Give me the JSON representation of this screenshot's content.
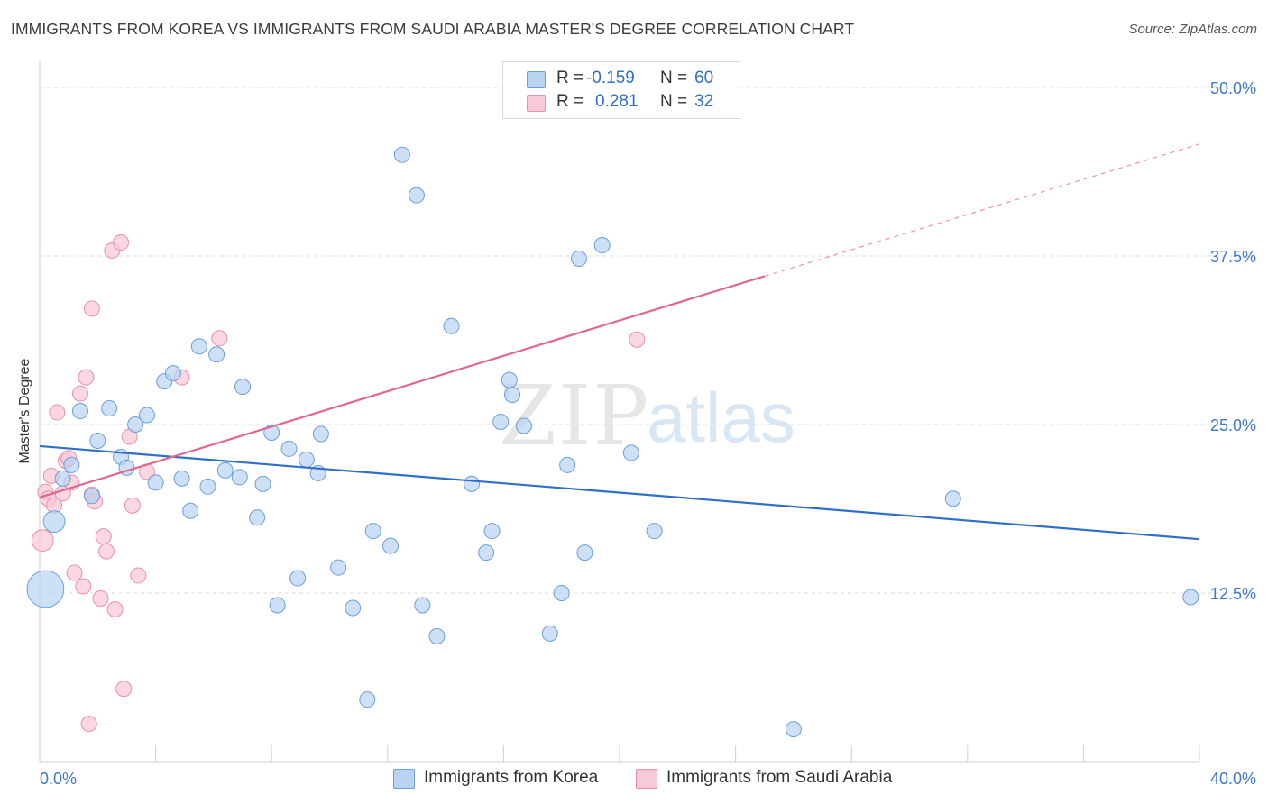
{
  "header": {
    "title": "IMMIGRANTS FROM KOREA VS IMMIGRANTS FROM SAUDI ARABIA MASTER'S DEGREE CORRELATION CHART",
    "source": "Source: ZipAtlas.com"
  },
  "watermark": {
    "zip": "ZIP",
    "atlas": "atlas"
  },
  "legend": {
    "korea": {
      "r_label": "R =",
      "r_value": "-0.159",
      "n_label": "N =",
      "n_value": "60"
    },
    "saudi": {
      "r_label": "R =",
      "r_value": "0.281",
      "n_label": "N =",
      "n_value": "32"
    }
  },
  "bottom_legend": {
    "korea": "Immigrants from Korea",
    "saudi": "Immigrants from Saudi Arabia"
  },
  "colors": {
    "korea_fill": "#b9d3f2",
    "korea_stroke": "#6b9fd8",
    "korea_line": "#2f6fc9",
    "saudi_fill": "#f8c9d7",
    "saudi_stroke": "#e891ac",
    "saudi_line": "#e0678f",
    "axis_text": "#3f78c8",
    "grid": "#dddddd"
  },
  "chart_data": {
    "type": "scatter",
    "title": "IMMIGRANTS FROM KOREA VS IMMIGRANTS FROM SAUDI ARABIA MASTER'S DEGREE CORRELATION CHART",
    "xlabel": "",
    "ylabel": "Master's Degree",
    "xlim": [
      0,
      40
    ],
    "ylim": [
      0,
      50
    ],
    "x_tick_labels": [
      "0.0%",
      "40.0%"
    ],
    "y_ticks": [
      12.5,
      25.0,
      37.5,
      50.0
    ],
    "y_tick_labels": [
      "12.5%",
      "25.0%",
      "37.5%",
      "50.0%"
    ],
    "grid": true,
    "series": [
      {
        "name": "Immigrants from Korea",
        "color": "korea",
        "points": [
          [
            0.2,
            12.8,
            2.4
          ],
          [
            0.5,
            17.8,
            1.4
          ],
          [
            0.8,
            21.0,
            1
          ],
          [
            1.1,
            22.0,
            1
          ],
          [
            1.4,
            26.0,
            1
          ],
          [
            1.8,
            19.7,
            1
          ],
          [
            2.0,
            23.8,
            1
          ],
          [
            2.4,
            26.2,
            1
          ],
          [
            2.8,
            22.6,
            1
          ],
          [
            3.0,
            21.8,
            1
          ],
          [
            3.3,
            25.0,
            1
          ],
          [
            3.7,
            25.7,
            1
          ],
          [
            4.0,
            20.7,
            1
          ],
          [
            4.3,
            28.2,
            1
          ],
          [
            4.6,
            28.8,
            1
          ],
          [
            4.9,
            21.0,
            1
          ],
          [
            5.2,
            18.6,
            1
          ],
          [
            5.5,
            30.8,
            1
          ],
          [
            5.8,
            20.4,
            1
          ],
          [
            6.1,
            30.2,
            1
          ],
          [
            6.4,
            21.6,
            1
          ],
          [
            6.9,
            21.1,
            1
          ],
          [
            7.0,
            27.8,
            1
          ],
          [
            7.5,
            18.1,
            1
          ],
          [
            7.7,
            20.6,
            1
          ],
          [
            8.0,
            24.4,
            1
          ],
          [
            8.2,
            11.6,
            1
          ],
          [
            8.6,
            23.2,
            1
          ],
          [
            8.9,
            13.6,
            1
          ],
          [
            9.2,
            22.4,
            1
          ],
          [
            9.6,
            21.4,
            1
          ],
          [
            9.7,
            24.3,
            1
          ],
          [
            10.3,
            14.4,
            1
          ],
          [
            10.8,
            11.4,
            1
          ],
          [
            11.3,
            4.6,
            1
          ],
          [
            11.5,
            17.1,
            1
          ],
          [
            12.1,
            16.0,
            1
          ],
          [
            12.5,
            45.0,
            1
          ],
          [
            13.0,
            42.0,
            1
          ],
          [
            13.2,
            11.6,
            1
          ],
          [
            13.7,
            9.3,
            1
          ],
          [
            14.2,
            32.3,
            1
          ],
          [
            14.9,
            20.6,
            1
          ],
          [
            15.4,
            15.5,
            1
          ],
          [
            15.6,
            17.1,
            1
          ],
          [
            15.9,
            25.2,
            1
          ],
          [
            16.2,
            28.3,
            1
          ],
          [
            16.3,
            27.2,
            1
          ],
          [
            16.7,
            24.9,
            1
          ],
          [
            17.6,
            9.5,
            1
          ],
          [
            18.0,
            12.5,
            1
          ],
          [
            18.2,
            22.0,
            1
          ],
          [
            18.6,
            37.3,
            1
          ],
          [
            18.8,
            15.5,
            1
          ],
          [
            19.4,
            38.3,
            1
          ],
          [
            20.4,
            22.9,
            1
          ],
          [
            21.2,
            17.1,
            1
          ],
          [
            26.0,
            2.4,
            1
          ],
          [
            31.5,
            19.5,
            1
          ],
          [
            39.7,
            12.2,
            1
          ]
        ],
        "trend": {
          "x0": 0,
          "y0": 23.4,
          "x1": 40,
          "y1": 16.5
        }
      },
      {
        "name": "Immigrants from Saudi Arabia",
        "color": "saudi",
        "points": [
          [
            0.1,
            16.4,
            1.4
          ],
          [
            0.2,
            20.0,
            1
          ],
          [
            0.3,
            19.5,
            1
          ],
          [
            0.4,
            21.2,
            1
          ],
          [
            0.5,
            19.0,
            1
          ],
          [
            0.6,
            25.9,
            1
          ],
          [
            0.8,
            19.9,
            1
          ],
          [
            0.9,
            22.3,
            1
          ],
          [
            1.0,
            22.5,
            1
          ],
          [
            1.1,
            20.7,
            1
          ],
          [
            1.2,
            14.0,
            1
          ],
          [
            1.4,
            27.3,
            1
          ],
          [
            1.5,
            13.0,
            1
          ],
          [
            1.6,
            28.5,
            1
          ],
          [
            1.7,
            2.8,
            1
          ],
          [
            1.8,
            33.6,
            1
          ],
          [
            1.8,
            19.8,
            1
          ],
          [
            1.9,
            19.3,
            1
          ],
          [
            2.1,
            12.1,
            1
          ],
          [
            2.2,
            16.7,
            1
          ],
          [
            2.3,
            15.6,
            1
          ],
          [
            2.5,
            37.9,
            1
          ],
          [
            2.6,
            11.3,
            1
          ],
          [
            2.8,
            38.5,
            1
          ],
          [
            2.9,
            5.4,
            1
          ],
          [
            3.1,
            24.1,
            1
          ],
          [
            3.2,
            19.0,
            1
          ],
          [
            3.4,
            13.8,
            1
          ],
          [
            3.7,
            21.5,
            1
          ],
          [
            4.9,
            28.5,
            1
          ],
          [
            6.2,
            31.4,
            1
          ],
          [
            20.6,
            31.3,
            1
          ]
        ],
        "trend": {
          "x0": 0,
          "y0": 19.6,
          "x1": 25,
          "y1": 36.0,
          "dashed_to_x": 40,
          "dashed_to_y": 45.8
        }
      }
    ]
  }
}
